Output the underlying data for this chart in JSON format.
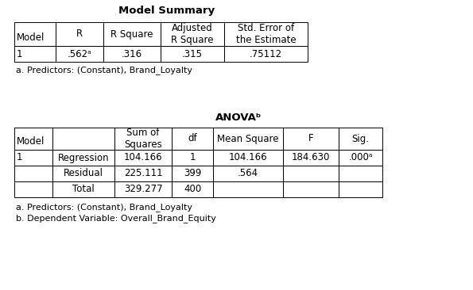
{
  "title1": "Model Summary",
  "title2": "ANOVAᵇ",
  "ms_headers": [
    "Model",
    "R",
    "R Square",
    "Adjusted\nR Square",
    "Std. Error of\nthe Estimate"
  ],
  "ms_data": [
    [
      "1",
      ".562ᵃ",
      ".316",
      ".315",
      ".75112"
    ]
  ],
  "ms_note": "a. Predictors: (Constant), Brand_Loyalty",
  "anova_headers": [
    "Model",
    "",
    "Sum of\nSquares",
    "df",
    "Mean Square",
    "F",
    "Sig."
  ],
  "anova_data": [
    [
      "1",
      "Regression",
      "104.166",
      "1",
      "104.166",
      "184.630",
      ".000ᵃ"
    ],
    [
      "",
      "Residual",
      "225.111",
      "399",
      ".564",
      "",
      ""
    ],
    [
      "",
      "Total",
      "329.277",
      "400",
      "",
      "",
      ""
    ]
  ],
  "anova_notes": [
    "a. Predictors: (Constant), Brand_Loyalty",
    "b. Dependent Variable: Overall_Brand_Equity"
  ],
  "bg_color": "#ffffff",
  "text_color": "#000000",
  "font_size": 8.5,
  "title_font_size": 9.5
}
